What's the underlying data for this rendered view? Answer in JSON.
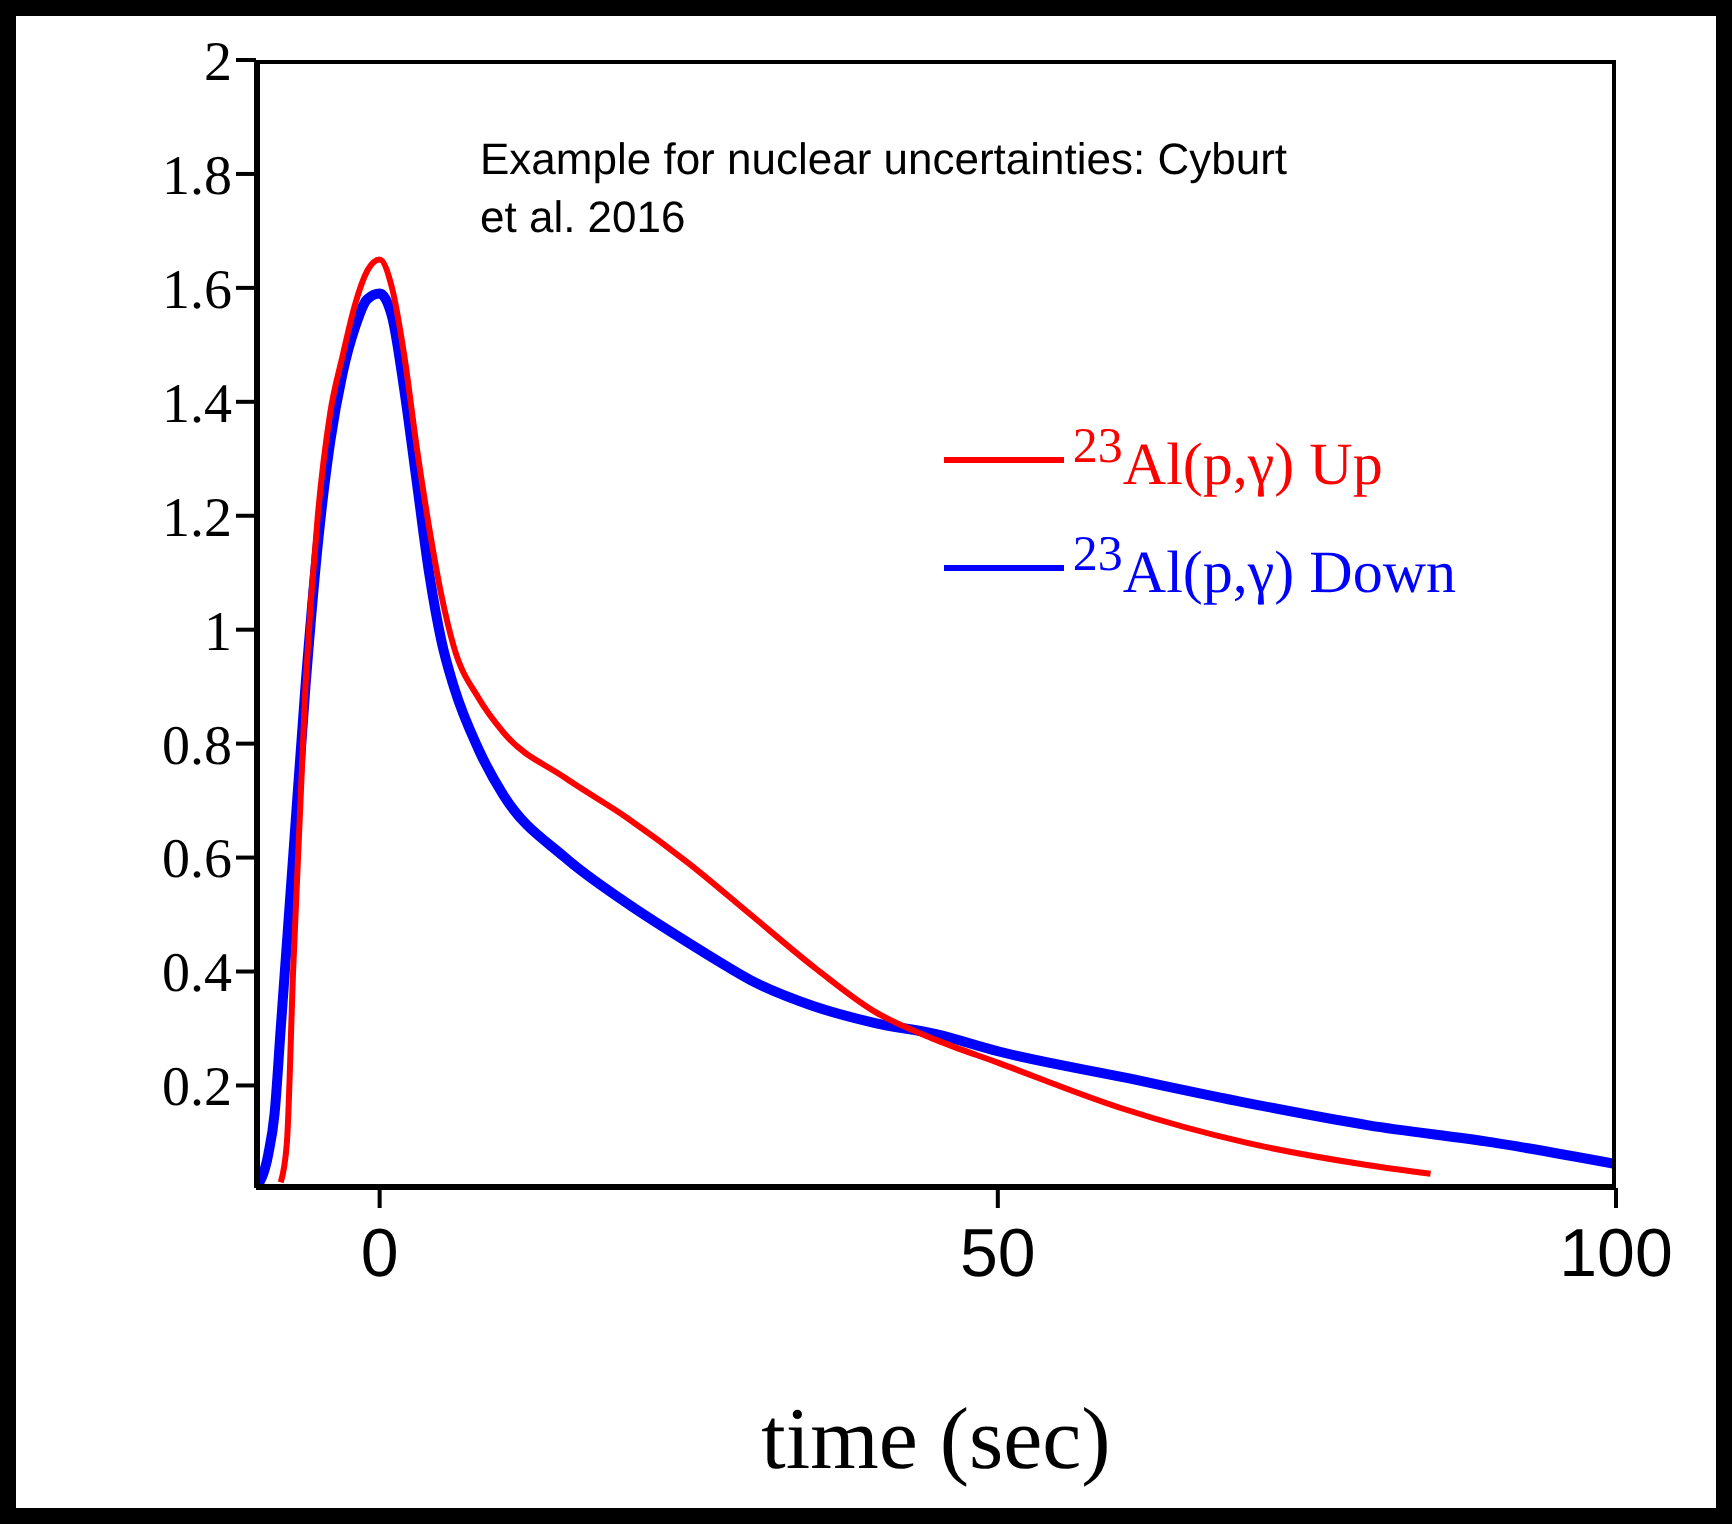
{
  "chart_data": {
    "type": "line",
    "xlabel": "time (sec)",
    "annotations": [
      "Example for nuclear uncertainties: Cyburt et al. 2016"
    ],
    "xlim": [
      -10,
      100
    ],
    "xticks": [
      0,
      50,
      100
    ],
    "ylim": [
      0.02,
      2
    ],
    "yticks": [
      0.2,
      0.4,
      0.6,
      0.8,
      1,
      1.2,
      1.4,
      1.6,
      1.8,
      2
    ],
    "grid": false,
    "legend": "top right",
    "marker": "none",
    "line_style": "solid",
    "series": [
      {
        "name": "$^{23}$Al(p,γ) Up",
        "color": "#ff0000",
        "x": [
          -8,
          -7.5,
          -7,
          -6,
          -5,
          -4,
          -3,
          -2,
          -1,
          0,
          1,
          2,
          3,
          4,
          5,
          6,
          8,
          10,
          15,
          20,
          25,
          30,
          35,
          40,
          45,
          50,
          60,
          70,
          80,
          85
        ],
        "values": [
          0.03,
          0.1,
          0.4,
          0.9,
          1.2,
          1.38,
          1.48,
          1.57,
          1.63,
          1.65,
          1.6,
          1.48,
          1.32,
          1.18,
          1.06,
          0.97,
          0.88,
          0.82,
          0.74,
          0.67,
          0.59,
          0.5,
          0.41,
          0.33,
          0.28,
          0.24,
          0.16,
          0.1,
          0.06,
          0.045
        ]
      },
      {
        "name": "$^{23}$Al(p,γ) Down",
        "color": "#0000ff",
        "x": [
          -10,
          -9,
          -8.5,
          -8,
          -7,
          -6,
          -5,
          -4,
          -3,
          -2,
          -1,
          0,
          1,
          2,
          3,
          4,
          5,
          6,
          8,
          10,
          15,
          20,
          25,
          28,
          30,
          35,
          40,
          45,
          50,
          60,
          70,
          80,
          90,
          100
        ],
        "values": [
          0.02,
          0.08,
          0.15,
          0.3,
          0.6,
          0.9,
          1.15,
          1.33,
          1.45,
          1.53,
          1.58,
          1.59,
          1.55,
          1.42,
          1.26,
          1.1,
          0.98,
          0.9,
          0.79,
          0.71,
          0.6,
          0.52,
          0.45,
          0.41,
          0.385,
          0.34,
          0.31,
          0.29,
          0.26,
          0.215,
          0.17,
          0.13,
          0.1,
          0.062
        ]
      }
    ]
  }
}
